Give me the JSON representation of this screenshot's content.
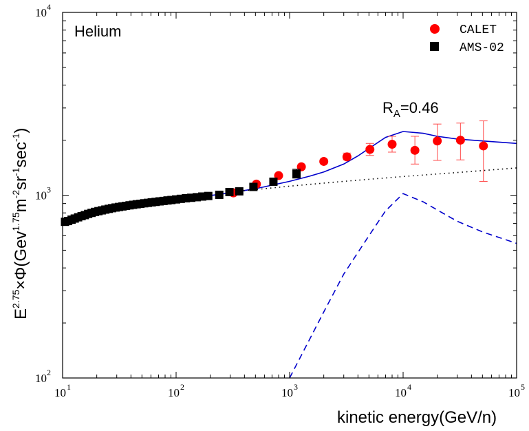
{
  "chart_data": {
    "type": "scatter",
    "panel_label": "Helium",
    "annotation": {
      "main": "R",
      "sub": "A",
      "rest": "=0.46"
    },
    "xlabel": "kinetic energy(GeV/n)",
    "ylabel": {
      "p1": "E",
      "p1sup": "2.75",
      "p2": "×Φ(Gev",
      "p2sup": "1.75",
      "p3": "m",
      "p3sup": "-2",
      "p4": "sr",
      "p4sup": "-1",
      "p5": "sec",
      "p5sup": "-1",
      "p6": ")"
    },
    "xscale": "log",
    "yscale": "log",
    "xlim": [
      10,
      100000
    ],
    "ylim": [
      100,
      10000
    ],
    "x_ticks": [
      {
        "base": "10",
        "exp": "1",
        "value": 10
      },
      {
        "base": "10",
        "exp": "2",
        "value": 100
      },
      {
        "base": "10",
        "exp": "3",
        "value": 1000
      },
      {
        "base": "10",
        "exp": "4",
        "value": 10000
      },
      {
        "base": "10",
        "exp": "5",
        "value": 100000
      }
    ],
    "y_ticks": [
      {
        "base": "10",
        "exp": "2",
        "value": 100
      },
      {
        "base": "10",
        "exp": "3",
        "value": 1000
      },
      {
        "base": "10",
        "exp": "4",
        "value": 10000
      }
    ],
    "legend": [
      {
        "label": "CALET",
        "marker": "circle",
        "color": "#ff0000"
      },
      {
        "label": "AMS-02",
        "marker": "square",
        "color": "#000000"
      }
    ],
    "series": [
      {
        "name": "CALET",
        "marker": "circle",
        "color": "#ff0000",
        "points": [
          {
            "x": 320,
            "y": 1030
          },
          {
            "x": 510,
            "y": 1150
          },
          {
            "x": 800,
            "y": 1280
          },
          {
            "x": 1270,
            "y": 1430
          },
          {
            "x": 2000,
            "y": 1530
          },
          {
            "x": 3200,
            "y": 1620,
            "err": [
              1560,
              1700
            ]
          },
          {
            "x": 5100,
            "y": 1780,
            "err": [
              1650,
              1920
            ]
          },
          {
            "x": 8000,
            "y": 1900,
            "err": [
              1720,
              2100
            ]
          },
          {
            "x": 12700,
            "y": 1760,
            "err": [
              1480,
              2100
            ]
          },
          {
            "x": 20000,
            "y": 1980,
            "err": [
              1550,
              2450
            ]
          },
          {
            "x": 32000,
            "y": 2000,
            "err": [
              1560,
              2480
            ]
          },
          {
            "x": 51000,
            "y": 1860,
            "err": [
              1190,
              2550
            ]
          }
        ]
      },
      {
        "name": "AMS-02",
        "marker": "square",
        "color": "#000000",
        "points": [
          {
            "x": 10.5,
            "y": 715,
            "err": [
              700,
              730
            ]
          },
          {
            "x": 11.2,
            "y": 722
          },
          {
            "x": 12,
            "y": 735
          },
          {
            "x": 12.8,
            "y": 745
          },
          {
            "x": 13.7,
            "y": 757
          },
          {
            "x": 14.7,
            "y": 768
          },
          {
            "x": 15.7,
            "y": 778
          },
          {
            "x": 16.8,
            "y": 790
          },
          {
            "x": 18,
            "y": 800
          },
          {
            "x": 19.3,
            "y": 810
          },
          {
            "x": 20.7,
            "y": 818
          },
          {
            "x": 22.2,
            "y": 826
          },
          {
            "x": 23.8,
            "y": 834
          },
          {
            "x": 25.5,
            "y": 842
          },
          {
            "x": 27.3,
            "y": 849
          },
          {
            "x": 29.3,
            "y": 856
          },
          {
            "x": 31.4,
            "y": 862
          },
          {
            "x": 33.7,
            "y": 868
          },
          {
            "x": 36.2,
            "y": 874
          },
          {
            "x": 38.9,
            "y": 880
          },
          {
            "x": 41.8,
            "y": 886
          },
          {
            "x": 45,
            "y": 892
          },
          {
            "x": 48.5,
            "y": 897
          },
          {
            "x": 52.3,
            "y": 903
          },
          {
            "x": 56.4,
            "y": 908
          },
          {
            "x": 61,
            "y": 914
          },
          {
            "x": 66,
            "y": 919
          },
          {
            "x": 71.5,
            "y": 925
          },
          {
            "x": 77.5,
            "y": 930
          },
          {
            "x": 84,
            "y": 936
          },
          {
            "x": 91,
            "y": 941
          },
          {
            "x": 100,
            "y": 948
          },
          {
            "x": 110,
            "y": 955
          },
          {
            "x": 122,
            "y": 962
          },
          {
            "x": 136,
            "y": 968
          },
          {
            "x": 152,
            "y": 975
          },
          {
            "x": 170,
            "y": 983
          },
          {
            "x": 192,
            "y": 990
          },
          {
            "x": 240,
            "y": 1005
          },
          {
            "x": 295,
            "y": 1040,
            "err": [
              1020,
              1060
            ]
          },
          {
            "x": 360,
            "y": 1050,
            "err": [
              1025,
              1075
            ]
          },
          {
            "x": 480,
            "y": 1110,
            "err": [
              1080,
              1145
            ]
          },
          {
            "x": 720,
            "y": 1185,
            "err": [
              1145,
              1230
            ]
          },
          {
            "x": 1150,
            "y": 1310,
            "err": [
              1240,
              1390
            ]
          }
        ]
      },
      {
        "name": "",
        "line": "solid",
        "color": "#0000cc",
        "points": [
          {
            "x": 10,
            "y": 710
          },
          {
            "x": 20,
            "y": 812
          },
          {
            "x": 30,
            "y": 860
          },
          {
            "x": 50,
            "y": 905
          },
          {
            "x": 100,
            "y": 955
          },
          {
            "x": 200,
            "y": 995
          },
          {
            "x": 300,
            "y": 1030
          },
          {
            "x": 500,
            "y": 1085
          },
          {
            "x": 1000,
            "y": 1190
          },
          {
            "x": 1500,
            "y": 1270
          },
          {
            "x": 2000,
            "y": 1340
          },
          {
            "x": 3000,
            "y": 1480
          },
          {
            "x": 4000,
            "y": 1640
          },
          {
            "x": 5000,
            "y": 1800
          },
          {
            "x": 7000,
            "y": 2070
          },
          {
            "x": 10000,
            "y": 2230
          },
          {
            "x": 15000,
            "y": 2180
          },
          {
            "x": 20000,
            "y": 2100
          },
          {
            "x": 30000,
            "y": 2030
          },
          {
            "x": 50000,
            "y": 1980
          },
          {
            "x": 100000,
            "y": 1920
          }
        ]
      },
      {
        "name": "",
        "line": "dotted",
        "color": "#000000",
        "points": [
          {
            "x": 300,
            "y": 1040
          },
          {
            "x": 1000,
            "y": 1120
          },
          {
            "x": 3000,
            "y": 1190
          },
          {
            "x": 10000,
            "y": 1265
          },
          {
            "x": 30000,
            "y": 1330
          },
          {
            "x": 100000,
            "y": 1410
          }
        ]
      },
      {
        "name": "",
        "line": "dashed",
        "color": "#0000cc",
        "points": [
          {
            "x": 1000,
            "y": 100
          },
          {
            "x": 2000,
            "y": 230
          },
          {
            "x": 3000,
            "y": 370
          },
          {
            "x": 5000,
            "y": 600
          },
          {
            "x": 7000,
            "y": 820
          },
          {
            "x": 10000,
            "y": 1020
          },
          {
            "x": 15000,
            "y": 920
          },
          {
            "x": 20000,
            "y": 830
          },
          {
            "x": 30000,
            "y": 720
          },
          {
            "x": 50000,
            "y": 630
          },
          {
            "x": 100000,
            "y": 545
          }
        ]
      }
    ]
  }
}
